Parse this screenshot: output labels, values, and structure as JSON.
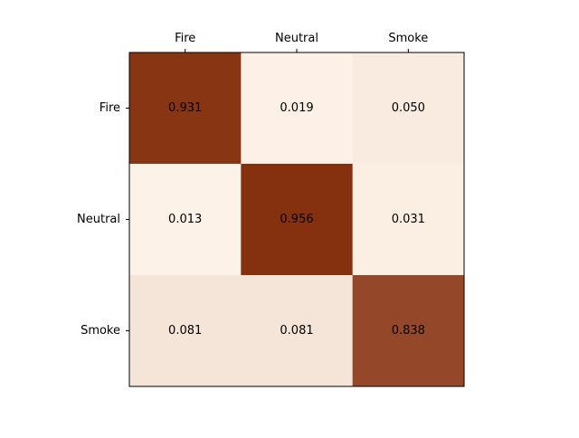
{
  "chart_data": {
    "type": "heatmap",
    "title": "",
    "xlabel": "",
    "ylabel": "",
    "x_tick_position": "top",
    "x_categories": [
      "Fire",
      "Neutral",
      "Smoke"
    ],
    "y_categories": [
      "Fire",
      "Neutral",
      "Smoke"
    ],
    "values": [
      [
        0.931,
        0.019,
        0.05
      ],
      [
        0.013,
        0.956,
        0.031
      ],
      [
        0.081,
        0.081,
        0.838
      ]
    ],
    "value_labels": [
      [
        "0.931",
        "0.019",
        "0.050"
      ],
      [
        "0.013",
        "0.956",
        "0.031"
      ],
      [
        "0.081",
        "0.081",
        "0.838"
      ]
    ],
    "colormap": "Oranges-dark",
    "color_low": "#fff5eb",
    "color_high": "#7f2704",
    "colorbar": false,
    "grid": false,
    "legend": "none"
  }
}
